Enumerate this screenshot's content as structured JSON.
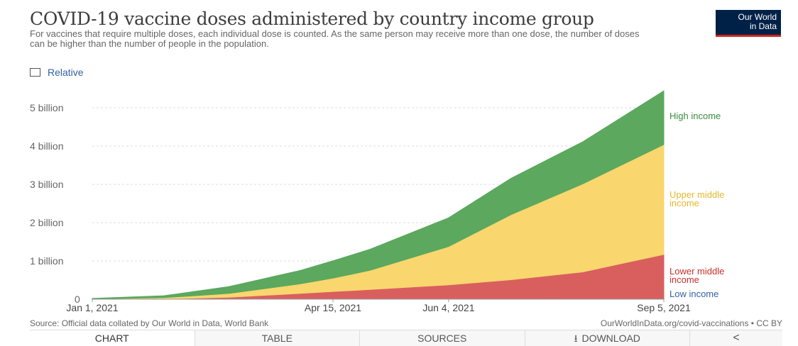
{
  "header": {
    "title": "COVID-19 vaccine doses administered by country income group",
    "subtitle": "For vaccines that require multiple doses, each individual dose is counted. As the same person may receive more than one dose, the number of doses can be higher than the number of people in the population.",
    "logo_line1": "Our World",
    "logo_line2": "in Data"
  },
  "controls": {
    "relative_label": "Relative",
    "relative_checked": false
  },
  "footer": {
    "source": "Source: Official data collated by Our World in Data, World Bank",
    "link": "OurWorldInData.org/covid-vaccinations • CC BY"
  },
  "tabs": [
    {
      "label": "CHART",
      "active": true
    },
    {
      "label": "TABLE",
      "active": false
    },
    {
      "label": "SOURCES",
      "active": false
    },
    {
      "label": "DOWNLOAD",
      "active": false
    }
  ],
  "colors": {
    "low_income": "#4c6a9c",
    "lower_middle": "#d95f5f",
    "upper_middle": "#f9d66e",
    "high_income": "#5ba85e",
    "label_high": "#3a8e3e",
    "label_upper": "#e3b92c",
    "label_lower": "#c9302c",
    "label_low": "#3360a9"
  },
  "chart_data": {
    "type": "area",
    "stacked": true,
    "x": [
      "2021-01-01",
      "2021-02-01",
      "2021-03-01",
      "2021-04-01",
      "2021-04-15",
      "2021-05-01",
      "2021-06-04",
      "2021-07-01",
      "2021-08-01",
      "2021-09-05"
    ],
    "x_ticks": [
      "Jan 1, 2021",
      "Apr 15, 2021",
      "Jun 4, 2021",
      "Sep 5, 2021"
    ],
    "y_ticks": [
      "0",
      "1 billion",
      "2 billion",
      "3 billion",
      "4 billion",
      "5 billion"
    ],
    "ylim": [
      0,
      5.5
    ],
    "y_unit": "billion doses",
    "grid": true,
    "series": [
      {
        "name": "Low income",
        "values": [
          0,
          0,
          0,
          0.001,
          0.002,
          0.004,
          0.006,
          0.009,
          0.013,
          0.02
        ]
      },
      {
        "name": "Lower middle income",
        "values": [
          0,
          0.01,
          0.05,
          0.15,
          0.2,
          0.25,
          0.37,
          0.5,
          0.7,
          1.15
        ]
      },
      {
        "name": "Upper middle income",
        "values": [
          0.01,
          0.03,
          0.1,
          0.25,
          0.35,
          0.5,
          1.0,
          1.7,
          2.3,
          2.87
        ]
      },
      {
        "name": "High income",
        "values": [
          0.01,
          0.05,
          0.18,
          0.35,
          0.45,
          0.55,
          0.75,
          0.95,
          1.1,
          1.4
        ]
      }
    ]
  }
}
